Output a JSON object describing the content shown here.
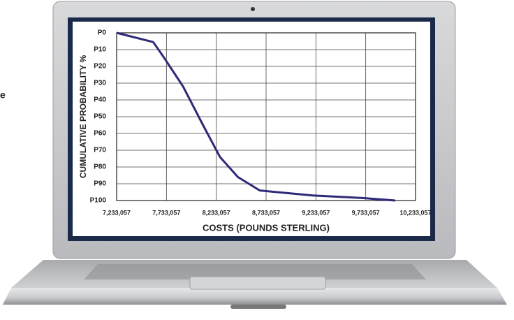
{
  "chart_data": {
    "type": "line",
    "y_label": "CUMULATIVE PROBABILITY %",
    "x_label": "COSTS (POUNDS STERLING)",
    "annotation": "e",
    "x": [
      7233057,
      7600000,
      7700000,
      7900000,
      8100000,
      8270000,
      8450000,
      8670000,
      9200000,
      9700000,
      10030000
    ],
    "values": [
      0,
      5.5,
      14,
      32,
      55,
      74,
      86,
      94,
      97,
      98.5,
      100
    ],
    "color": "#2e2a78",
    "xlim": [
      7233057,
      10233057
    ],
    "xticks": [
      {
        "value": 7233057,
        "label": "7,233,057"
      },
      {
        "value": 7733057,
        "label": "7,733,057"
      },
      {
        "value": 8233057,
        "label": "8,233,057"
      },
      {
        "value": 8733057,
        "label": "8,733,057"
      },
      {
        "value": 9233057,
        "label": "9,233,057"
      },
      {
        "value": 9733057,
        "label": "9,733,057"
      },
      {
        "value": 10233057,
        "label": "10,233,057"
      }
    ],
    "ylim": [
      0,
      100
    ],
    "y_inverted": true,
    "yticks": [
      {
        "value": 0,
        "label": "P0"
      },
      {
        "value": 10,
        "label": "P10"
      },
      {
        "value": 20,
        "label": "P20"
      },
      {
        "value": 30,
        "label": "P30"
      },
      {
        "value": 40,
        "label": "P40"
      },
      {
        "value": 50,
        "label": "P50"
      },
      {
        "value": 60,
        "label": "P60"
      },
      {
        "value": 70,
        "label": "P70"
      },
      {
        "value": 80,
        "label": "P80"
      },
      {
        "value": 90,
        "label": "P90"
      },
      {
        "value": 100,
        "label": "P100"
      }
    ],
    "grid": true
  }
}
